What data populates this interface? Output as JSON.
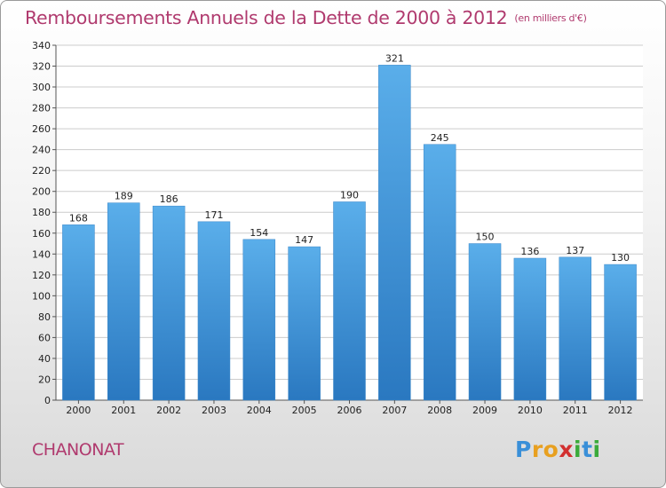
{
  "title": "Remboursements Annuels de la Dette de 2000 à 2012",
  "subtitle": "(en milliers d'€)",
  "place_name": "CHANONAT",
  "logo": {
    "text": "Proxiti",
    "letters": [
      {
        "ch": "P",
        "color": "#3a8fd8"
      },
      {
        "ch": "r",
        "color": "#e8a020"
      },
      {
        "ch": "o",
        "color": "#e8a020"
      },
      {
        "ch": "x",
        "color": "#d23030"
      },
      {
        "ch": "i",
        "color": "#3aaa3a"
      },
      {
        "ch": "t",
        "color": "#3a8fd8"
      },
      {
        "ch": "i",
        "color": "#3aaa3a"
      }
    ]
  },
  "colors": {
    "bar_top": "#5aaeea",
    "bar_bottom": "#2a78c0",
    "title": "#b03a6e",
    "grid": "#cccccc"
  },
  "chart_data": {
    "type": "bar",
    "title": "Remboursements Annuels de la Dette de 2000 à 2012",
    "subtitle": "(en milliers d'€)",
    "categories": [
      "2000",
      "2001",
      "2002",
      "2003",
      "2004",
      "2005",
      "2006",
      "2007",
      "2008",
      "2009",
      "2010",
      "2011",
      "2012"
    ],
    "values": [
      168,
      189,
      186,
      171,
      154,
      147,
      190,
      321,
      245,
      150,
      136,
      137,
      130
    ],
    "ylim": [
      0,
      340
    ],
    "ytick_step": 20,
    "grid": true,
    "data_labels": true
  }
}
